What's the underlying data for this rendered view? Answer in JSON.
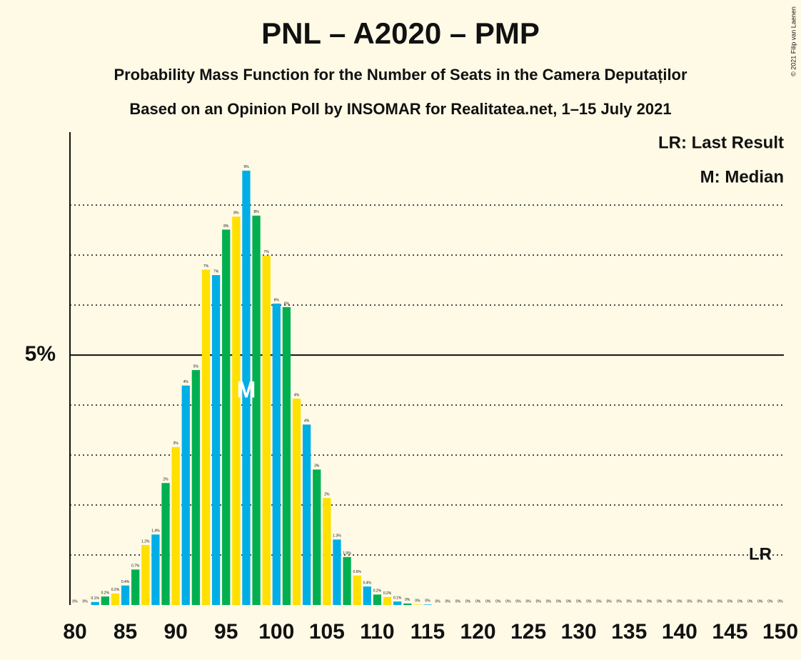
{
  "chart_data": {
    "type": "bar",
    "title": "PNL – A2020 – PMP",
    "subtitle": "Probability Mass Function for the Number of Seats in the Camera Deputaților",
    "subtitle2": "Based on an Opinion Poll by INSOMAR for Realitatea.net, 1–15 July 2021",
    "copyright": "© 2021 Filip van Laenen",
    "legend": [
      "LR: Last Result",
      "M: Median"
    ],
    "last_result_label": "LR",
    "median_label": "M",
    "median": 97,
    "x": [
      80,
      81,
      82,
      83,
      84,
      85,
      86,
      87,
      88,
      89,
      90,
      91,
      92,
      93,
      94,
      95,
      96,
      97,
      98,
      99,
      100,
      101,
      102,
      103,
      104,
      105,
      106,
      107,
      108,
      109,
      110,
      111,
      112,
      113,
      114,
      115,
      116,
      117,
      118,
      119,
      120,
      121,
      122,
      123,
      124,
      125,
      126,
      127,
      128,
      129,
      130,
      131,
      132,
      133,
      134,
      135,
      136,
      137,
      138,
      139,
      140,
      141,
      142,
      143,
      144,
      145,
      146,
      147,
      148,
      149,
      150
    ],
    "values": [
      0,
      0,
      0.06,
      0.17,
      0.23,
      0.39,
      0.71,
      1.2,
      1.41,
      2.44,
      3.16,
      4.39,
      4.7,
      6.71,
      6.6,
      7.51,
      7.77,
      8.69,
      7.79,
      6.99,
      6.03,
      5.96,
      4.13,
      3.61,
      2.71,
      2.14,
      1.31,
      0.96,
      0.59,
      0.37,
      0.21,
      0.16,
      0.07,
      0.03,
      0.01,
      0.01,
      0,
      0,
      0,
      0,
      0,
      0,
      0,
      0,
      0,
      0,
      0,
      0,
      0,
      0,
      0,
      0,
      0,
      0,
      0,
      0,
      0,
      0,
      0,
      0,
      0,
      0,
      0,
      0,
      0,
      0,
      0,
      0,
      0,
      0,
      0
    ],
    "value_labels": [
      "0%",
      "0%",
      "0.1%",
      "0.2%",
      "0.2%",
      "0.4%",
      "0.7%",
      "1.2%",
      "1.4%",
      "2%",
      "3%",
      "4%",
      "5%",
      "7%",
      "7%",
      "8%",
      "8%",
      "9%",
      "8%",
      "7%",
      "6%",
      "6%",
      "4%",
      "4%",
      "3%",
      "2%",
      "1.3%",
      "1.0%",
      "0.6%",
      "0.4%",
      "0.2%",
      "0.2%",
      "0.1%",
      "0%",
      "0%",
      "0%",
      "0%",
      "0%",
      "0%",
      "0%",
      "0%",
      "0%",
      "0%",
      "0%",
      "0%",
      "0%",
      "0%",
      "0%",
      "0%",
      "0%",
      "0%",
      "0%",
      "0%",
      "0%",
      "0%",
      "0%",
      "0%",
      "0%",
      "0%",
      "0%",
      "0%",
      "0%",
      "0%",
      "0%",
      "0%",
      "0%",
      "0%",
      "0%",
      "0%",
      "0%",
      "0%"
    ],
    "colors": [
      "#00b050",
      "#ffe000",
      "#00aee6"
    ],
    "xlim": [
      80,
      150
    ],
    "xticks": [
      80,
      85,
      90,
      95,
      100,
      105,
      110,
      115,
      120,
      125,
      130,
      135,
      140,
      145,
      150
    ],
    "ylim": [
      0,
      9.46
    ],
    "yticks": [
      {
        "value": 5,
        "label": "5%"
      }
    ],
    "gridlines": [
      1,
      2,
      3,
      4,
      6,
      7,
      8
    ]
  }
}
